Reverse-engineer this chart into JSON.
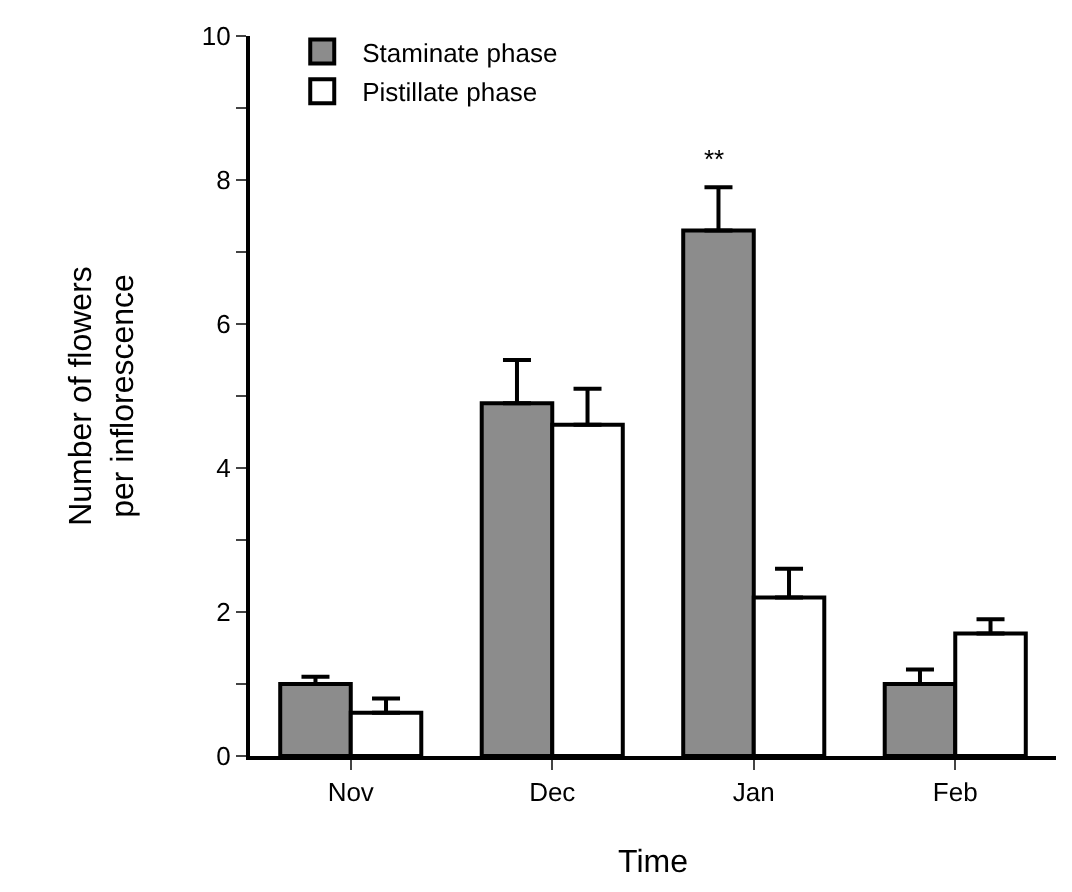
{
  "chart_data": {
    "type": "bar",
    "xlabel": "Time",
    "ylabel": "Number of flowers\nper inflorescence",
    "categories": [
      "Nov",
      "Dec",
      "Jan",
      "Feb"
    ],
    "series": [
      {
        "name": "Staminate phase",
        "color": "#8c8c8c",
        "values": [
          1.0,
          4.9,
          7.3,
          1.0
        ],
        "errors": [
          0.1,
          0.6,
          0.6,
          0.2
        ]
      },
      {
        "name": "Pistillate phase",
        "color": "#ffffff",
        "values": [
          0.6,
          4.6,
          2.2,
          1.7
        ],
        "errors": [
          0.2,
          0.5,
          0.4,
          0.2
        ]
      }
    ],
    "ylim": [
      0,
      10
    ],
    "yticks": [
      0,
      {
        "value": 1,
        "label": null
      },
      2,
      {
        "value": 3,
        "label": null
      },
      4,
      {
        "value": 5,
        "label": null
      },
      6,
      {
        "value": 7,
        "label": null
      },
      8,
      {
        "value": 9,
        "label": null
      },
      10
    ],
    "annotations": [
      {
        "text": "**",
        "x": "Jan",
        "y": 7.3
      }
    ],
    "grid": false,
    "legend": "top left"
  }
}
